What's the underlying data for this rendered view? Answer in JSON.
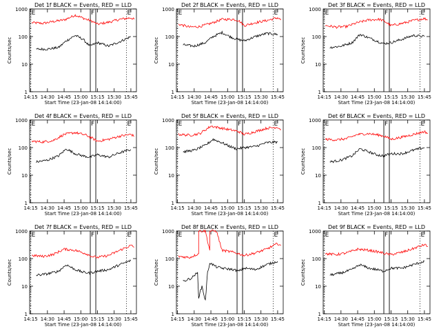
{
  "figure": {
    "colors": {
      "events": "#000000",
      "lld": "#ff0000",
      "axis": "#000000"
    }
  },
  "chart_data": [
    {
      "type": "line",
      "title": "Det 1f BLACK = Events, RED = LLD",
      "xlabel": "Start Time (23-Jan-08 14:14:00)",
      "ylabel": "Counts/sec",
      "x_ticks": [
        "14:15",
        "14:30",
        "14:45",
        "15:00",
        "15:15",
        "15:30",
        "15:45"
      ],
      "y_ticks": [
        "1",
        "10",
        "100",
        "1000"
      ],
      "ylim": [
        1,
        1000
      ],
      "yscale": "log",
      "markers": [
        {
          "label": "E",
          "x": "14:15"
        },
        {
          "label": "F",
          "x": "15:11"
        },
        {
          "label": "E",
          "x": "15:41"
        }
      ],
      "series": [
        {
          "x": [
            "14:16",
            "14:26",
            "14:35",
            "14:45",
            "14:55",
            "15:05",
            "15:10",
            "15:15",
            "15:25",
            "15:35",
            "15:45",
            "15:48"
          ],
          "y": [
            320,
            300,
            350,
            400,
            600,
            420,
            360,
            280,
            330,
            420,
            480,
            420
          ]
        },
        {
          "x": [
            "14:20",
            "14:30",
            "14:40",
            "14:47",
            "14:55",
            "15:02",
            "15:08",
            "15:15",
            "15:25",
            "15:35",
            "15:45"
          ],
          "y": [
            35,
            35,
            40,
            70,
            110,
            80,
            45,
            60,
            45,
            65,
            100
          ]
        }
      ]
    },
    {
      "type": "line",
      "title": "Det 2f BLACK = Events, RED = LLD",
      "xlabel": "Start Time (23-Jan-08 14:14:00)",
      "ylabel": "Counts/sec",
      "x_ticks": [
        "14:15",
        "14:30",
        "14:45",
        "15:00",
        "15:15",
        "15:30",
        "15:45"
      ],
      "y_ticks": [
        "1",
        "10",
        "100",
        "1000"
      ],
      "ylim": [
        1,
        1000
      ],
      "yscale": "log",
      "markers": [
        {
          "label": "E",
          "x": "14:15"
        },
        {
          "label": "F",
          "x": "15:11"
        },
        {
          "label": "E",
          "x": "15:41"
        }
      ],
      "series": [
        {
          "x": [
            "14:16",
            "14:26",
            "14:35",
            "14:45",
            "14:55",
            "15:05",
            "15:10",
            "15:15",
            "15:25",
            "15:35",
            "15:45",
            "15:48"
          ],
          "y": [
            280,
            220,
            230,
            300,
            420,
            420,
            380,
            250,
            320,
            380,
            480,
            400
          ]
        },
        {
          "x": [
            "14:20",
            "14:30",
            "14:40",
            "14:47",
            "14:55",
            "15:02",
            "15:08",
            "15:15",
            "15:25",
            "15:35",
            "15:45"
          ],
          "y": [
            50,
            45,
            60,
            100,
            140,
            100,
            80,
            70,
            100,
            130,
            120
          ]
        }
      ]
    },
    {
      "type": "line",
      "title": "Det 3f BLACK = Events, RED = LLD",
      "xlabel": "Start Time (23-Jan-08 14:14:00)",
      "ylabel": "Counts/sec",
      "x_ticks": [
        "14:15",
        "14:30",
        "14:45",
        "15:00",
        "15:15",
        "15:30",
        "15:45"
      ],
      "y_ticks": [
        "1",
        "10",
        "100",
        "1000"
      ],
      "ylim": [
        1,
        1000
      ],
      "yscale": "log",
      "markers": [
        {
          "label": "E",
          "x": "14:15"
        },
        {
          "label": "F",
          "x": "15:11"
        },
        {
          "label": "E",
          "x": "15:41"
        }
      ],
      "series": [
        {
          "x": [
            "14:16",
            "14:26",
            "14:35",
            "14:45",
            "14:55",
            "15:05",
            "15:10",
            "15:15",
            "15:25",
            "15:35",
            "15:45",
            "15:48"
          ],
          "y": [
            250,
            220,
            230,
            320,
            400,
            420,
            340,
            250,
            300,
            380,
            450,
            400
          ]
        },
        {
          "x": [
            "14:20",
            "14:30",
            "14:40",
            "14:47",
            "14:55",
            "15:02",
            "15:08",
            "15:15",
            "15:25",
            "15:35",
            "15:45"
          ],
          "y": [
            40,
            45,
            60,
            120,
            90,
            70,
            55,
            60,
            80,
            110,
            100
          ]
        }
      ]
    },
    {
      "type": "line",
      "title": "Det 4f BLACK = Events, RED = LLD",
      "xlabel": "Start Time (23-Jan-08 14:14:00)",
      "ylabel": "Counts/sec",
      "x_ticks": [
        "14:15",
        "14:30",
        "14:45",
        "15:00",
        "15:15",
        "15:30",
        "15:45"
      ],
      "y_ticks": [
        "1",
        "10",
        "100",
        "1000"
      ],
      "ylim": [
        1,
        1000
      ],
      "yscale": "log",
      "markers": [
        {
          "label": "E",
          "x": "14:15"
        },
        {
          "label": "F",
          "x": "15:11"
        },
        {
          "label": "E",
          "x": "15:41"
        }
      ],
      "series": [
        {
          "x": [
            "14:16",
            "14:26",
            "14:35",
            "14:45",
            "14:55",
            "15:05",
            "15:10",
            "15:15",
            "15:25",
            "15:35",
            "15:45",
            "15:48"
          ],
          "y": [
            170,
            160,
            180,
            300,
            350,
            280,
            220,
            170,
            200,
            260,
            300,
            260
          ]
        },
        {
          "x": [
            "14:20",
            "14:30",
            "14:40",
            "14:47",
            "14:55",
            "15:02",
            "15:08",
            "15:15",
            "15:25",
            "15:35",
            "15:45"
          ],
          "y": [
            30,
            35,
            50,
            90,
            60,
            50,
            45,
            55,
            45,
            65,
            85
          ]
        }
      ]
    },
    {
      "type": "line",
      "title": "Det 5f BLACK = Events, RED = LLD",
      "xlabel": "Start Time (23-Jan-08 14:14:00)",
      "ylabel": "Counts/sec",
      "x_ticks": [
        "14:15",
        "14:30",
        "14:45",
        "15:00",
        "15:15",
        "15:30",
        "15:45"
      ],
      "y_ticks": [
        "1",
        "10",
        "100",
        "1000"
      ],
      "ylim": [
        1,
        1000
      ],
      "yscale": "log",
      "markers": [
        {
          "label": "E",
          "x": "14:15"
        },
        {
          "label": "F",
          "x": "15:11"
        },
        {
          "label": "E",
          "x": "15:41"
        }
      ],
      "series": [
        {
          "x": [
            "14:16",
            "14:26",
            "14:35",
            "14:45",
            "14:55",
            "15:05",
            "15:10",
            "15:15",
            "15:25",
            "15:35",
            "15:45",
            "15:48"
          ],
          "y": [
            300,
            280,
            320,
            600,
            500,
            420,
            380,
            300,
            380,
            500,
            550,
            450
          ]
        },
        {
          "x": [
            "14:20",
            "14:30",
            "14:40",
            "14:47",
            "14:55",
            "15:02",
            "15:08",
            "15:15",
            "15:25",
            "15:35",
            "15:45"
          ],
          "y": [
            70,
            80,
            120,
            200,
            150,
            110,
            90,
            100,
            110,
            150,
            160
          ]
        }
      ]
    },
    {
      "type": "line",
      "title": "Det 6f BLACK = Events, RED = LLD",
      "xlabel": "Start Time (23-Jan-08 14:14:00)",
      "ylabel": "Counts/sec",
      "x_ticks": [
        "14:15",
        "14:30",
        "14:45",
        "15:00",
        "15:15",
        "15:30",
        "15:45"
      ],
      "y_ticks": [
        "1",
        "10",
        "100",
        "1000"
      ],
      "ylim": [
        1,
        1000
      ],
      "yscale": "log",
      "markers": [
        {
          "label": "E",
          "x": "14:15"
        },
        {
          "label": "F",
          "x": "15:11"
        },
        {
          "label": "E",
          "x": "15:41"
        }
      ],
      "series": [
        {
          "x": [
            "14:16",
            "14:26",
            "14:35",
            "14:45",
            "14:55",
            "15:05",
            "15:10",
            "15:15",
            "15:25",
            "15:35",
            "15:45",
            "15:48"
          ],
          "y": [
            200,
            190,
            210,
            300,
            320,
            280,
            250,
            200,
            240,
            300,
            380,
            330
          ]
        },
        {
          "x": [
            "14:20",
            "14:30",
            "14:40",
            "14:47",
            "14:55",
            "15:02",
            "15:08",
            "15:15",
            "15:25",
            "15:35",
            "15:45"
          ],
          "y": [
            30,
            35,
            50,
            90,
            70,
            55,
            50,
            60,
            60,
            80,
            100
          ]
        }
      ]
    },
    {
      "type": "line",
      "title": "Det 7f BLACK = Events, RED = LLD",
      "xlabel": "Start Time (23-Jan-08 14:14:00)",
      "ylabel": "Counts/sec",
      "x_ticks": [
        "14:15",
        "14:30",
        "14:45",
        "15:00",
        "15:15",
        "15:30",
        "15:45"
      ],
      "y_ticks": [
        "1",
        "10",
        "100",
        "1000"
      ],
      "ylim": [
        1,
        1000
      ],
      "yscale": "log",
      "markers": [
        {
          "label": "E",
          "x": "14:15"
        },
        {
          "label": "F",
          "x": "15:11"
        },
        {
          "label": "E",
          "x": "15:41"
        }
      ],
      "series": [
        {
          "x": [
            "14:16",
            "14:26",
            "14:35",
            "14:45",
            "14:55",
            "15:05",
            "15:10",
            "15:15",
            "15:25",
            "15:35",
            "15:45",
            "15:48"
          ],
          "y": [
            130,
            120,
            140,
            220,
            200,
            150,
            120,
            110,
            130,
            200,
            300,
            260
          ]
        },
        {
          "x": [
            "14:20",
            "14:30",
            "14:40",
            "14:47",
            "14:55",
            "15:02",
            "15:08",
            "15:15",
            "15:25",
            "15:35",
            "15:45"
          ],
          "y": [
            25,
            28,
            35,
            60,
            40,
            32,
            30,
            35,
            40,
            60,
            85
          ]
        }
      ]
    },
    {
      "type": "line",
      "title": "Det 8f BLACK = Events, RED = LLD",
      "xlabel": "Start Time (23-Jan-08 14:14:00)",
      "ylabel": "Counts/sec",
      "x_ticks": [
        "14:15",
        "14:30",
        "14:45",
        "15:00",
        "15:15",
        "15:30",
        "15:45"
      ],
      "y_ticks": [
        "1",
        "10",
        "100",
        "1000"
      ],
      "ylim": [
        1,
        1000
      ],
      "yscale": "log",
      "markers": [
        {
          "label": "E",
          "x": "14:15"
        },
        {
          "label": "F",
          "x": "15:11"
        },
        {
          "label": "E",
          "x": "15:41"
        }
      ],
      "series": [
        {
          "x": [
            "14:16",
            "14:26",
            "14:34",
            "14:34",
            "14:40",
            "14:44",
            "14:44",
            "14:50",
            "14:55",
            "15:05",
            "15:10",
            "15:15",
            "15:25",
            "15:35",
            "15:45",
            "15:48"
          ],
          "y": [
            120,
            110,
            150,
            1000,
            1000,
            200,
            1000,
            1000,
            200,
            170,
            150,
            130,
            160,
            220,
            350,
            300
          ]
        },
        {
          "x": [
            "14:20",
            "14:28",
            "14:30",
            "14:33",
            "14:34",
            "14:37",
            "14:40",
            "14:42",
            "14:44",
            "14:50",
            "14:55",
            "15:05",
            "15:10",
            "15:15",
            "15:25",
            "15:35",
            "15:45"
          ],
          "y": [
            15,
            20,
            25,
            30,
            4,
            10,
            3,
            30,
            70,
            50,
            45,
            40,
            35,
            45,
            40,
            60,
            80
          ]
        }
      ]
    },
    {
      "type": "line",
      "title": "Det 9f BLACK = Events, RED = LLD",
      "xlabel": "Start Time (23-Jan-08 14:14:00)",
      "ylabel": "Counts/sec",
      "x_ticks": [
        "14:15",
        "14:30",
        "14:45",
        "15:00",
        "15:15",
        "15:30",
        "15:45"
      ],
      "y_ticks": [
        "1",
        "10",
        "100",
        "1000"
      ],
      "ylim": [
        1,
        1000
      ],
      "yscale": "log",
      "markers": [
        {
          "label": "E",
          "x": "14:15"
        },
        {
          "label": "F",
          "x": "15:11"
        },
        {
          "label": "E",
          "x": "15:41"
        }
      ],
      "series": [
        {
          "x": [
            "14:16",
            "14:26",
            "14:35",
            "14:45",
            "14:55",
            "15:05",
            "15:10",
            "15:15",
            "15:25",
            "15:35",
            "15:45",
            "15:48"
          ],
          "y": [
            150,
            140,
            160,
            220,
            200,
            170,
            150,
            140,
            170,
            230,
            320,
            280
          ]
        },
        {
          "x": [
            "14:20",
            "14:30",
            "14:40",
            "14:47",
            "14:55",
            "15:02",
            "15:08",
            "15:15",
            "15:25",
            "15:35",
            "15:45"
          ],
          "y": [
            25,
            30,
            40,
            60,
            45,
            40,
            35,
            45,
            45,
            60,
            80
          ]
        }
      ]
    }
  ]
}
